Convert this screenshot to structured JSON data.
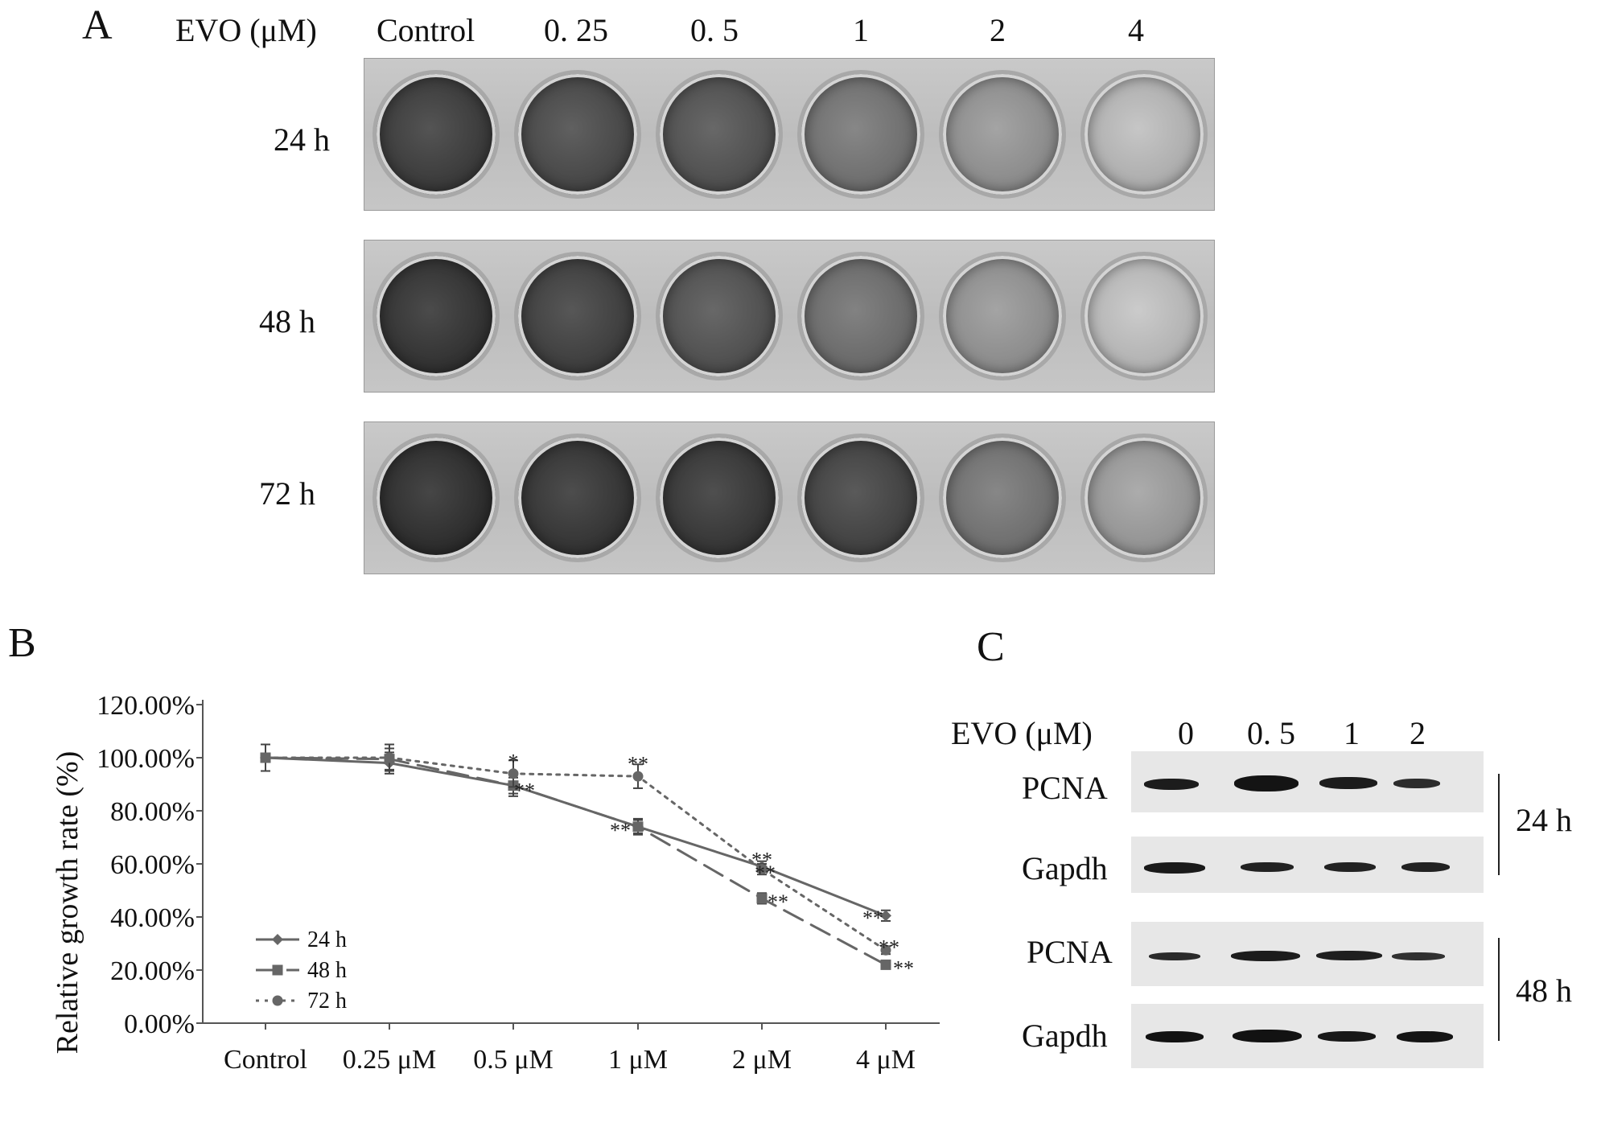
{
  "panels": {
    "A": {
      "letter": "A",
      "header": [
        "EVO (μM)",
        "Control",
        "0. 25",
        "0. 5",
        "1",
        "2",
        "4"
      ],
      "rows": [
        "24 h",
        "48 h",
        "72 h"
      ],
      "stain_intensity": [
        [
          0.92,
          0.85,
          0.8,
          0.62,
          0.45,
          0.25
        ],
        [
          0.97,
          0.9,
          0.8,
          0.65,
          0.45,
          0.22
        ],
        [
          1.0,
          0.96,
          0.95,
          0.88,
          0.62,
          0.4
        ]
      ]
    },
    "B": {
      "letter": "B"
    },
    "C": {
      "letter": "C",
      "header": [
        "EVO (μM)",
        "0",
        "0. 5",
        "1",
        "2"
      ],
      "blots": [
        "PCNA",
        "Gapdh",
        "PCNA",
        "Gapdh"
      ],
      "groups": [
        "24 h",
        "48 h"
      ]
    }
  },
  "chart_data": {
    "type": "line",
    "categories": [
      "Control",
      "0.25 μM",
      "0.5 μM",
      "1 μM",
      "2 μM",
      "4 μM"
    ],
    "ylabel": "Relative growth rate (%)",
    "xlabel": "",
    "ylim": [
      0,
      120
    ],
    "yticks": [
      "0.00%",
      "20.00%",
      "40.00%",
      "60.00%",
      "80.00%",
      "100.00%",
      "120.00%"
    ],
    "legend_position": "left",
    "series": [
      {
        "name": "24 h",
        "values": [
          100,
          98,
          89.5,
          74,
          59,
          40.5
        ],
        "errors": [
          5,
          4,
          3,
          2.5,
          2,
          2
        ],
        "marker": "diamond",
        "dash": "solid"
      },
      {
        "name": "48 h",
        "values": [
          100,
          99.5,
          89.5,
          74,
          47,
          22
        ],
        "errors": [
          5,
          4,
          4,
          3,
          2,
          1
        ],
        "marker": "square",
        "dash": "dashed"
      },
      {
        "name": "72 h",
        "values": [
          100,
          100,
          94,
          93,
          58,
          27.5
        ],
        "errors": [
          5,
          5,
          5,
          4.5,
          2,
          1.5
        ],
        "marker": "circle",
        "dash": "dotted"
      }
    ],
    "annotations": [
      {
        "text": "*",
        "x": "0.5 μM",
        "y": 99
      },
      {
        "text": "**",
        "x": "0.5 μM",
        "y": 88
      },
      {
        "text": "**",
        "x": "1 μM",
        "y": 98
      },
      {
        "text": "**",
        "x": "1 μM",
        "y": 73
      },
      {
        "text": "**",
        "x": "2 μM",
        "y": 62
      },
      {
        "text": "**",
        "x": "2 μM",
        "y": 57
      },
      {
        "text": "**",
        "x": "2 μM",
        "y": 46
      },
      {
        "text": "**",
        "x": "4 μM",
        "y": 40
      },
      {
        "text": "**",
        "x": "4 μM",
        "y": 29
      },
      {
        "text": "**",
        "x": "4 μM",
        "y": 21
      }
    ],
    "colors": {
      "line": "#666666",
      "axis": "#555555"
    }
  }
}
